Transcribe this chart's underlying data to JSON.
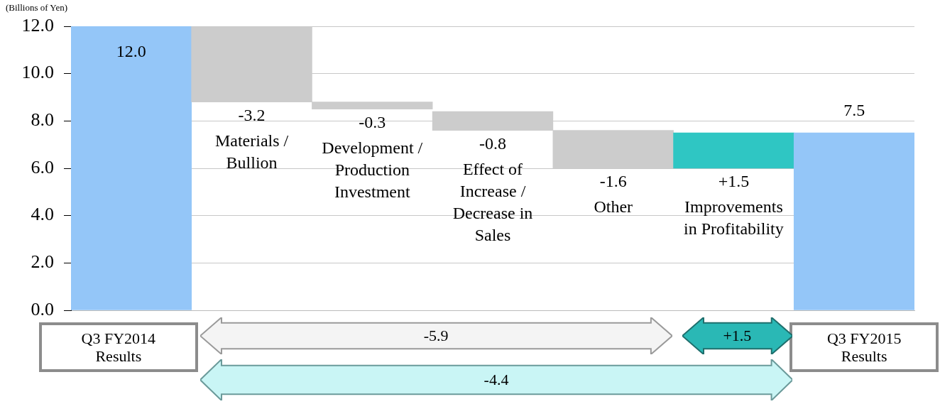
{
  "chart_data": {
    "type": "bar",
    "ylabel": "(Billions of Yen)",
    "categories": [
      "Q3 FY2014 Results",
      "Materials / Bullion",
      "Development / Production Investment",
      "Effect of Increase / Decrease in Sales",
      "Other",
      "Improvements in Profitability",
      "Q3 FY2015 Results"
    ],
    "values": [
      12.0,
      -3.2,
      -0.3,
      -0.8,
      -1.6,
      1.5,
      7.5
    ],
    "base": [
      0,
      12.0,
      8.8,
      8.4,
      7.6,
      6.0,
      0
    ],
    "colors": [
      "#94c6f8",
      "#cccccc",
      "#cccccc",
      "#cccccc",
      "#cccccc",
      "#2fc6c3",
      "#94c6f8"
    ],
    "value_labels": [
      "12.0",
      "-3.2",
      "-0.3",
      "-0.8",
      "-1.6",
      "+1.5",
      "7.5"
    ],
    "ylim": [
      0,
      12
    ],
    "yticks": [
      {
        "value": 0,
        "label": "0.0"
      },
      {
        "value": 2,
        "label": "2.0"
      },
      {
        "value": 4,
        "label": "4.0"
      },
      {
        "value": 6,
        "label": "6.0"
      },
      {
        "value": 8,
        "label": "8.0"
      },
      {
        "value": 10,
        "label": "10.0"
      },
      {
        "value": 12,
        "label": "12.0"
      }
    ],
    "grid": "y",
    "annotations": [
      "-5.9",
      "+1.5",
      "-4.4"
    ]
  }
}
